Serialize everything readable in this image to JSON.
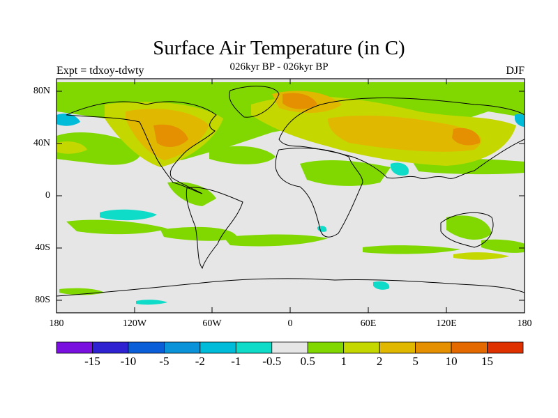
{
  "title": "Surface Air Temperature (in C)",
  "subtitle": "026kyr BP - 026kyr BP",
  "left_label": "Expt = tdxoy-tdwty",
  "right_label": "DJF",
  "lat_ticks": [
    "80N",
    "40N",
    "0",
    "40S",
    "80S"
  ],
  "lon_ticks": [
    "180",
    "120W",
    "60W",
    "0",
    "60E",
    "120E",
    "180"
  ],
  "colorbar": {
    "colors": [
      "#7a10e0",
      "#2f22d0",
      "#0a5fd8",
      "#0b93da",
      "#00bcd8",
      "#0fdcc8",
      "#e6e6e6",
      "#80d800",
      "#c4d800",
      "#e0b800",
      "#e49000",
      "#e46a00",
      "#df3000"
    ],
    "labels": [
      "-15",
      "-10",
      "-5",
      "-2",
      "-1",
      "-0.5",
      "0.5",
      "1",
      "2",
      "5",
      "10",
      "15"
    ]
  },
  "colors": {
    "background": "#e6e6e6",
    "coast": "#000000"
  }
}
